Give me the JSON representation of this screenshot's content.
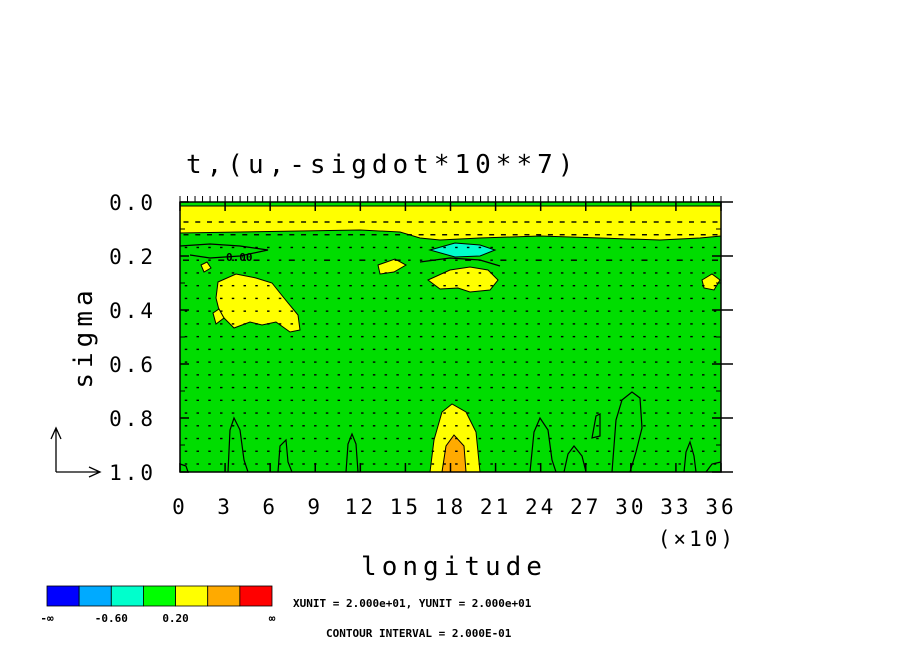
{
  "chart_data": {
    "type": "heatmap",
    "title": "t,(u,-sigdot*10**7)",
    "xlabel": "longitude",
    "ylabel": "sigma",
    "x_scale_note": "(×10)",
    "xlim": [
      0,
      36
    ],
    "ylim": [
      0.0,
      1.0
    ],
    "y_inverted": true,
    "x_ticks": [
      "0",
      "3",
      "6",
      "9",
      "12",
      "15",
      "18",
      "21",
      "24",
      "27",
      "30",
      "33",
      "36"
    ],
    "y_ticks": [
      "0.0",
      "0.2",
      "0.4",
      "0.6",
      "0.8",
      "1.0"
    ],
    "contour_label": "0.00",
    "colorbar": {
      "colors": [
        "#0000ff",
        "#00aaff",
        "#00ffcc",
        "#00ff00",
        "#ffff00",
        "#ffaa00",
        "#ff0000"
      ],
      "labels": [
        "-∞",
        "-0.60",
        "0.20",
        "∞"
      ]
    },
    "background_color": "#00dd00",
    "notes": [
      "XUNIT = 2.000e+01, YUNIT = 2.000e+01",
      "CONTOUR INTERVAL = 2.000E-01"
    ]
  }
}
